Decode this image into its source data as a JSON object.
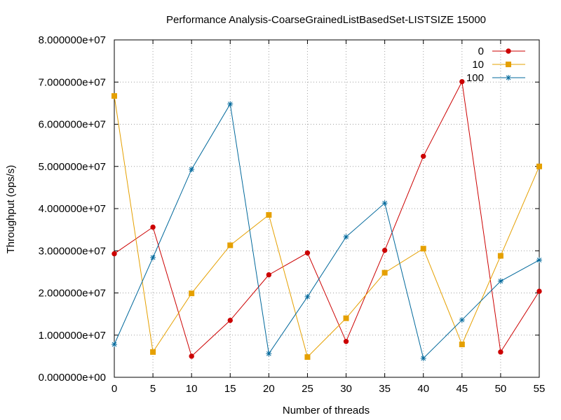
{
  "chart_data": {
    "type": "line",
    "title": "Performance Analysis-CoarseGrainedListBasedSet-LISTSIZE 15000",
    "xlabel": "Number of threads",
    "ylabel": "Throughput (ops/s)",
    "xlim": [
      0,
      55
    ],
    "ylim": [
      0,
      80000000
    ],
    "x_ticks": [
      0,
      5,
      10,
      15,
      20,
      25,
      30,
      35,
      40,
      45,
      50,
      55
    ],
    "x_tick_labels": [
      "0",
      "5",
      "10",
      "15",
      "20",
      "25",
      "30",
      "35",
      "40",
      "45",
      "50",
      "55"
    ],
    "y_ticks": [
      0,
      10000000,
      20000000,
      30000000,
      40000000,
      50000000,
      60000000,
      70000000,
      80000000
    ],
    "y_tick_labels": [
      "0.000000e+00",
      "1.000000e+07",
      "2.000000e+07",
      "3.000000e+07",
      "4.000000e+07",
      "5.000000e+07",
      "6.000000e+07",
      "7.000000e+07",
      "8.000000e+07"
    ],
    "grid": true,
    "legend_position": "top-right",
    "x": [
      0,
      5,
      10,
      15,
      20,
      25,
      30,
      35,
      40,
      45,
      50,
      55
    ],
    "series": [
      {
        "name": "0",
        "color": "#cc0000",
        "marker": "filled-circle",
        "values": [
          29300000,
          35600000,
          5000000,
          13500000,
          24300000,
          29500000,
          8500000,
          30100000,
          52400000,
          70100000,
          6000000,
          20400000
        ]
      },
      {
        "name": "10",
        "color": "#e5a000",
        "marker": "filled-square",
        "values": [
          66700000,
          6000000,
          19900000,
          31300000,
          38500000,
          4800000,
          14000000,
          24800000,
          30500000,
          7800000,
          28800000,
          50000000
        ]
      },
      {
        "name": "100",
        "color": "#00689b",
        "marker": "asterisk",
        "values": [
          7800000,
          28400000,
          49300000,
          64800000,
          5600000,
          19100000,
          33300000,
          41300000,
          4500000,
          13600000,
          22800000,
          27800000
        ]
      }
    ]
  }
}
